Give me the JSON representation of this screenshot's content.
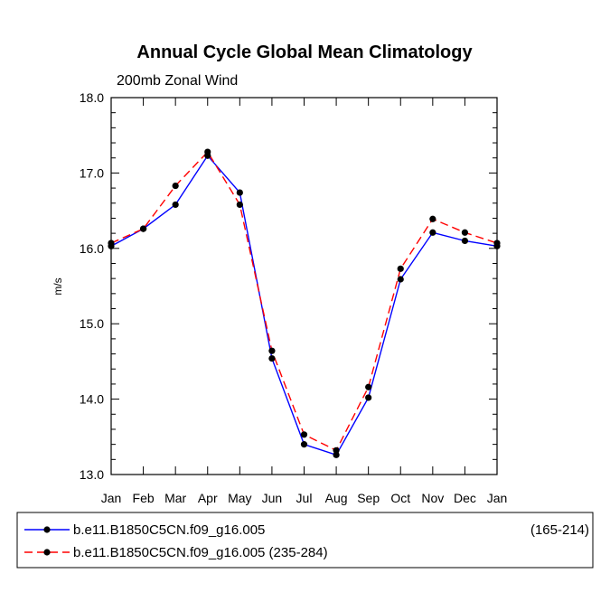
{
  "chart_data": {
    "type": "line",
    "title": "Annual Cycle Global Mean Climatology",
    "subtitle": "200mb Zonal Wind",
    "xlabel": "",
    "ylabel": "m/s",
    "categories": [
      "Jan",
      "Feb",
      "Mar",
      "Apr",
      "May",
      "Jun",
      "Jul",
      "Aug",
      "Sep",
      "Oct",
      "Nov",
      "Dec",
      "Jan"
    ],
    "ylim": [
      13.0,
      18.0
    ],
    "yticks": [
      "13.0",
      "14.0",
      "15.0",
      "16.0",
      "17.0",
      "18.0"
    ],
    "grid": false,
    "series": [
      {
        "name": "b.e11.B1850C5CN.f09_g16.005",
        "years": "(165-214)",
        "color": "#0000ff",
        "dash": "solid",
        "values": [
          16.03,
          16.26,
          16.58,
          17.23,
          16.74,
          14.54,
          13.4,
          13.26,
          14.02,
          15.59,
          16.21,
          16.1,
          16.03
        ]
      },
      {
        "name": "b.e11.B1850C5CN.f09_g16.005 (235-284)",
        "color": "#ff0000",
        "dash": "dashed",
        "values": [
          16.07,
          16.26,
          16.83,
          17.28,
          16.58,
          14.64,
          13.53,
          13.32,
          14.16,
          15.73,
          16.39,
          16.21,
          16.07
        ]
      }
    ],
    "legend": {
      "position": "bottom",
      "entries": [
        {
          "label": "b.e11.B1850C5CN.f09_g16.005",
          "suffix": "(165-214)"
        },
        {
          "label": "b.e11.B1850C5CN.f09_g16.005 (235-284)",
          "suffix": ""
        }
      ]
    }
  }
}
